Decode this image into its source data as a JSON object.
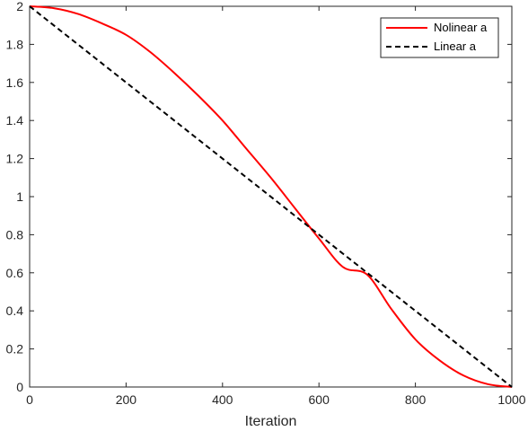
{
  "chart_data": {
    "type": "line",
    "xlabel": "Iteration",
    "ylabel": "",
    "xlim": [
      0,
      1000
    ],
    "ylim": [
      0,
      2
    ],
    "xticks": [
      "0",
      "200",
      "400",
      "600",
      "800",
      "1000"
    ],
    "yticks": [
      "0",
      "0.2",
      "0.4",
      "0.6",
      "0.8",
      "1",
      "1.2",
      "1.4",
      "1.6",
      "1.8",
      "2"
    ],
    "legend_position": "top-right",
    "grid": false,
    "series": [
      {
        "name": "Nolinear a",
        "color": "#ff0000",
        "style": "solid",
        "x": [
          0,
          50,
          100,
          150,
          200,
          250,
          300,
          350,
          400,
          450,
          500,
          550,
          600,
          650,
          700,
          750,
          800,
          850,
          900,
          950,
          1000
        ],
        "y": [
          2.0,
          1.99,
          1.96,
          1.91,
          1.85,
          1.76,
          1.65,
          1.53,
          1.4,
          1.25,
          1.1,
          0.94,
          0.78,
          0.63,
          0.59,
          0.41,
          0.25,
          0.14,
          0.06,
          0.015,
          0.0
        ]
      },
      {
        "name": "Linear a",
        "color": "#000000",
        "style": "dashed",
        "x": [
          0,
          1000
        ],
        "y": [
          2.0,
          0.0
        ]
      }
    ]
  }
}
